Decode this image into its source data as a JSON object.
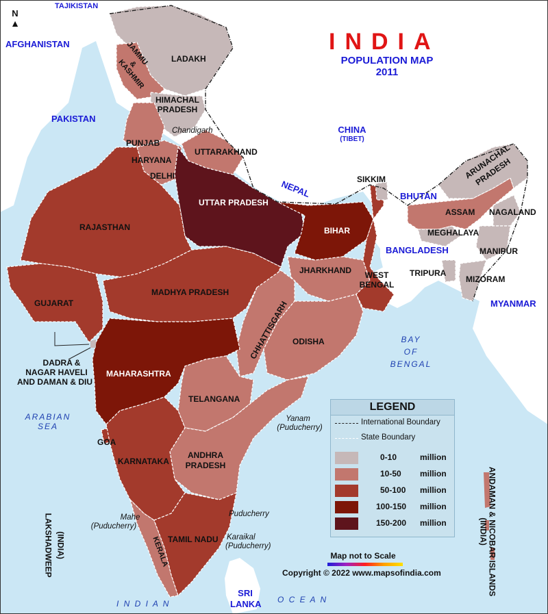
{
  "map": {
    "title": "INDIA",
    "subtitle_line1": "POPULATION MAP",
    "subtitle_line2": "2011",
    "north_label": "N",
    "scale_note": "Map not to Scale",
    "copyright": "Copyright © 2022 www.mapsofindia.com"
  },
  "legend": {
    "title": "LEGEND",
    "international_boundary": "International Boundary",
    "state_boundary": "State Boundary",
    "unit": "million",
    "classes": [
      {
        "range": "0-10",
        "color": "#c6b8b8"
      },
      {
        "range": "10-50",
        "color": "#c2776e"
      },
      {
        "range": "50-100",
        "color": "#a33a2c"
      },
      {
        "range": "100-150",
        "color": "#7d1608"
      },
      {
        "range": "150-200",
        "color": "#5e141c"
      }
    ]
  },
  "colors": {
    "sea": "#cbe7f5",
    "neighbor_land": "#ffffff",
    "class_0_10": "#c6b8b8",
    "class_10_50": "#c2776e",
    "class_50_100": "#a33a2c",
    "class_100_150": "#7d1608",
    "class_150_200": "#5e141c"
  },
  "states": {
    "ladakh": "LADAKH",
    "jammu_kashmir_1": "JAMMU",
    "jammu_kashmir_2": "&",
    "jammu_kashmir_3": "KASHMIR",
    "himachal_1": "HIMACHAL",
    "himachal_2": "PRADESH",
    "punjab": "PUNJAB",
    "haryana": "HARYANA",
    "delhi": "DELHI",
    "uttarakhand": "UTTARAKHAND",
    "uttar_pradesh": "UTTAR  PRADESH",
    "rajasthan": "RAJASTHAN",
    "gujarat": "GUJARAT",
    "madhya_pradesh": "MADHYA  PRADESH",
    "bihar": "BIHAR",
    "jharkhand": "JHARKHAND",
    "west_bengal_1": "WEST",
    "west_bengal_2": "BENGAL",
    "sikkim": "SIKKIM",
    "assam": "ASSAM",
    "arunachal_1": "ARUNACHAL",
    "arunachal_2": "PRADESH",
    "nagaland": "NAGALAND",
    "meghalaya": "MEGHALAYA",
    "manipur": "MANIPUR",
    "mizoram": "MIZORAM",
    "tripura": "TRIPURA",
    "chhattisgarh": "CHHATTISGARH",
    "odisha": "ODISHA",
    "maharashtra": "MAHARASHTRA",
    "telangana": "TELANGANA",
    "andhra_1": "ANDHRA",
    "andhra_2": "PRADESH",
    "karnataka": "KARNATAKA",
    "goa": "GOA",
    "tamil_nadu": "TAMIL NADU",
    "kerala": "KERALA",
    "dnh_1": "DADRA &",
    "dnh_2": "NAGAR HAVELI",
    "dnh_3": "AND DAMAN & DIU",
    "andaman_1": "ANDAMAN  &  NICOBAR  ISLANDS",
    "andaman_2": "(INDIA)",
    "lakshadweep_1": "LAKSHADWEEP",
    "lakshadweep_2": "(INDIA)"
  },
  "places": {
    "chandigarh": "Chandigarh",
    "yanam_1": "Yanam",
    "yanam_2": "(Puducherry)",
    "puducherry": "Puducherry",
    "karaikal_1": "Karaikal",
    "karaikal_2": "(Puducherry)",
    "mahe_1": "Mahe",
    "mahe_2": "(Puducherry)"
  },
  "neighbors": {
    "tajikistan": "TAJIKISTAN",
    "afghanistan": "AFGHANISTAN",
    "pakistan": "PAKISTAN",
    "china": "CHINA",
    "tibet": "(TIBET)",
    "nepal": "NEPAL",
    "bhutan": "BHUTAN",
    "bangladesh": "BANGLADESH",
    "myanmar": "MYANMAR",
    "sri_1": "SRI",
    "sri_2": "LANKA"
  },
  "water": {
    "arabian_1": "ARABIAN",
    "arabian_2": "SEA",
    "bay_1": "BAY",
    "bay_2": "OF",
    "bay_3": "BENGAL",
    "indian": "I  N  D  I  A  N",
    "ocean": "O  C  E  A  N"
  }
}
